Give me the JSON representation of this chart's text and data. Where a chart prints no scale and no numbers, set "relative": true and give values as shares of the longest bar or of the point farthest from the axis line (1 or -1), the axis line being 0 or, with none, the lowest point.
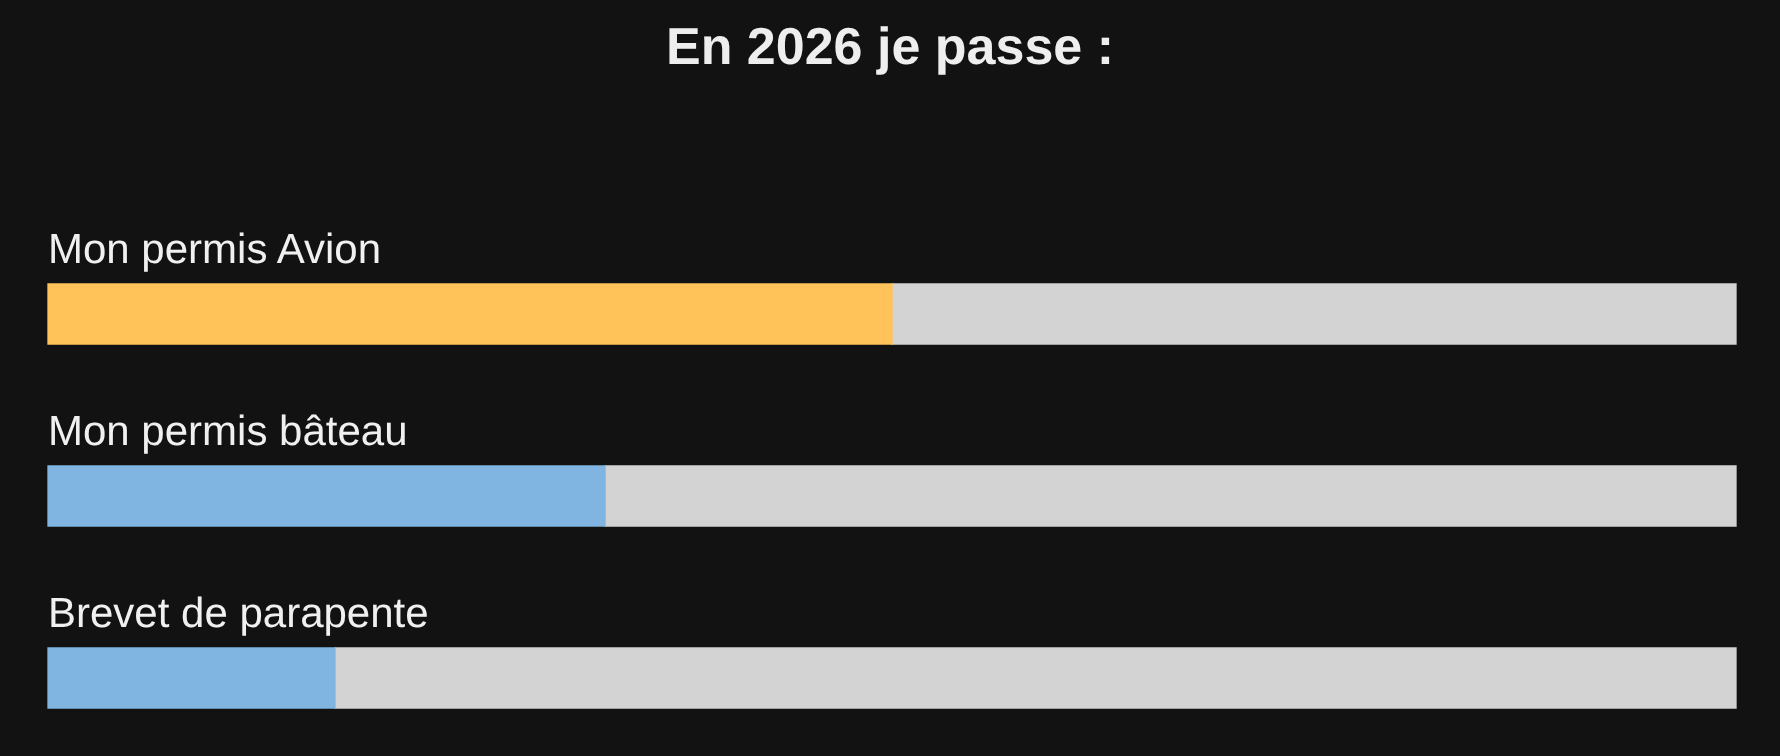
{
  "chart_data": {
    "type": "bar",
    "title": "En 2026 je passe :",
    "orientation": "horizontal",
    "stacked": true,
    "relative": true,
    "legend": false,
    "categories": [
      "Mon permis Avion",
      "Mon permis bâteau",
      "Brevet de parapente"
    ],
    "series": [
      {
        "colors": [
          "#ffc35a",
          "#7fb5e0",
          "#7fb5e0"
        ],
        "values": [
          0.5,
          0.33,
          0.17
        ]
      },
      {
        "color": "#d3d3d3",
        "values": [
          0.5,
          0.67,
          0.83
        ]
      }
    ]
  }
}
